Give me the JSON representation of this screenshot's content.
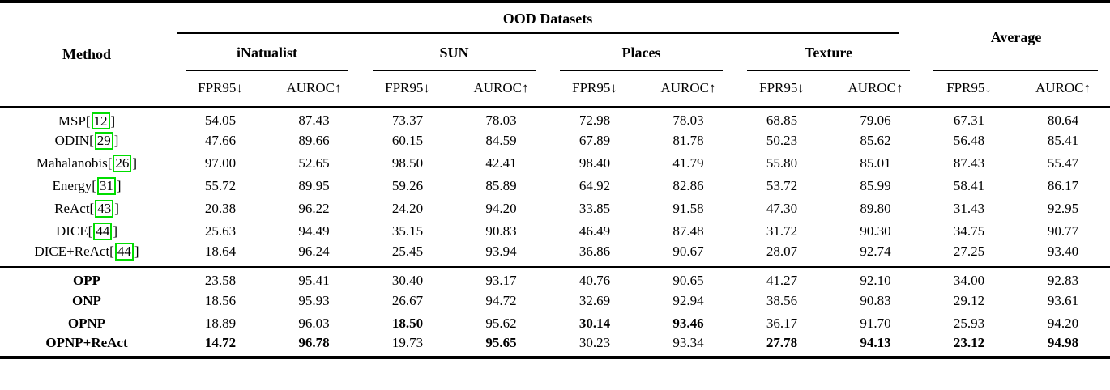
{
  "colors": {
    "citation_box": "#00dd00",
    "text": "#000000",
    "background": "#ffffff"
  },
  "table": {
    "header": {
      "ood_title": "OOD Datasets",
      "method": "Method",
      "average": "Average",
      "datasets": [
        "iNatualist",
        "SUN",
        "Places",
        "Texture"
      ],
      "metrics": {
        "fpr": "FPR95↓",
        "auroc": "AUROC↑"
      }
    },
    "sections": [
      {
        "rows": [
          {
            "method": "MSP",
            "citation": "12",
            "bold_method": false,
            "values": [
              "54.05",
              "87.43",
              "73.37",
              "78.03",
              "72.98",
              "78.03",
              "68.85",
              "79.06",
              "67.31",
              "80.64"
            ],
            "bold": []
          },
          {
            "method": "ODIN",
            "citation": "29",
            "bold_method": false,
            "values": [
              "47.66",
              "89.66",
              "60.15",
              "84.59",
              "67.89",
              "81.78",
              "50.23",
              "85.62",
              "56.48",
              "85.41"
            ],
            "bold": []
          },
          {
            "method": "Mahalanobis",
            "citation": "26",
            "bold_method": false,
            "values": [
              "97.00",
              "52.65",
              "98.50",
              "42.41",
              "98.40",
              "41.79",
              "55.80",
              "85.01",
              "87.43",
              "55.47"
            ],
            "bold": []
          },
          {
            "method": "Energy",
            "citation": "31",
            "bold_method": false,
            "values": [
              "55.72",
              "89.95",
              "59.26",
              "85.89",
              "64.92",
              "82.86",
              "53.72",
              "85.99",
              "58.41",
              "86.17"
            ],
            "bold": []
          },
          {
            "method": "ReAct",
            "citation": "43",
            "bold_method": false,
            "values": [
              "20.38",
              "96.22",
              "24.20",
              "94.20",
              "33.85",
              "91.58",
              "47.30",
              "89.80",
              "31.43",
              "92.95"
            ],
            "bold": []
          },
          {
            "method": "DICE",
            "citation": "44",
            "bold_method": false,
            "values": [
              "25.63",
              "94.49",
              "35.15",
              "90.83",
              "46.49",
              "87.48",
              "31.72",
              "90.30",
              "34.75",
              "90.77"
            ],
            "bold": []
          },
          {
            "method": "DICE+ReAct",
            "citation": "44",
            "bold_method": false,
            "values": [
              "18.64",
              "96.24",
              "25.45",
              "93.94",
              "36.86",
              "90.67",
              "28.07",
              "92.74",
              "27.25",
              "93.40"
            ],
            "bold": []
          }
        ]
      },
      {
        "rows": [
          {
            "method": "OPP",
            "citation": null,
            "bold_method": true,
            "values": [
              "23.58",
              "95.41",
              "30.40",
              "93.17",
              "40.76",
              "90.65",
              "41.27",
              "92.10",
              "34.00",
              "92.83"
            ],
            "bold": []
          },
          {
            "method": "ONP",
            "citation": null,
            "bold_method": true,
            "values": [
              "18.56",
              "95.93",
              "26.67",
              "94.72",
              "32.69",
              "92.94",
              "38.56",
              "90.83",
              "29.12",
              "93.61"
            ],
            "bold": []
          },
          {
            "method": "OPNP",
            "citation": null,
            "bold_method": true,
            "values": [
              "18.89",
              "96.03",
              "18.50",
              "95.62",
              "30.14",
              "93.46",
              "36.17",
              "91.70",
              "25.93",
              "94.20"
            ],
            "bold": [
              2,
              4,
              5
            ]
          },
          {
            "method": "OPNP+ReAct",
            "citation": null,
            "bold_method": true,
            "values": [
              "14.72",
              "96.78",
              "19.73",
              "95.65",
              "30.23",
              "93.34",
              "27.78",
              "94.13",
              "23.12",
              "94.98"
            ],
            "bold": [
              0,
              1,
              3,
              6,
              7,
              8,
              9
            ]
          }
        ]
      }
    ]
  }
}
